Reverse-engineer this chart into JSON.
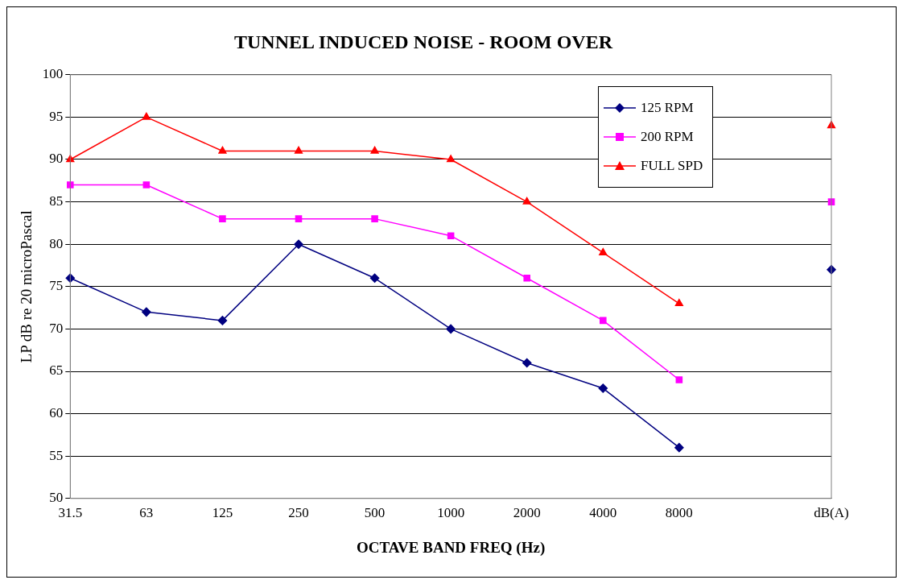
{
  "chart_data": {
    "type": "line",
    "title": "TUNNEL INDUCED NOISE - ROOM OVER",
    "xlabel": "OCTAVE BAND FREQ (Hz)",
    "ylabel": "LP dB re 20 microPascal",
    "categories": [
      "31.5",
      "63",
      "125",
      "250",
      "500",
      "1000",
      "2000",
      "4000",
      "8000",
      null,
      "dB(A)"
    ],
    "series": [
      {
        "name": "125 RPM",
        "color": "#000080",
        "marker": "diamond",
        "values": [
          76,
          72,
          71,
          80,
          76,
          70,
          66,
          63,
          56,
          null,
          77
        ]
      },
      {
        "name": "200 RPM",
        "color": "#ff00ff",
        "marker": "square",
        "values": [
          87,
          87,
          83,
          83,
          83,
          81,
          76,
          71,
          64,
          null,
          85
        ]
      },
      {
        "name": "FULL SPD",
        "color": "#ff0000",
        "marker": "triangle",
        "values": [
          90,
          95,
          91,
          91,
          91,
          90,
          85,
          79,
          73,
          null,
          94
        ]
      }
    ],
    "ylim": [
      50,
      100
    ],
    "yticks": [
      50,
      55,
      60,
      65,
      70,
      75,
      80,
      85,
      90,
      95,
      100
    ],
    "grid": "y",
    "legend": "top right",
    "line_style": "solid"
  }
}
